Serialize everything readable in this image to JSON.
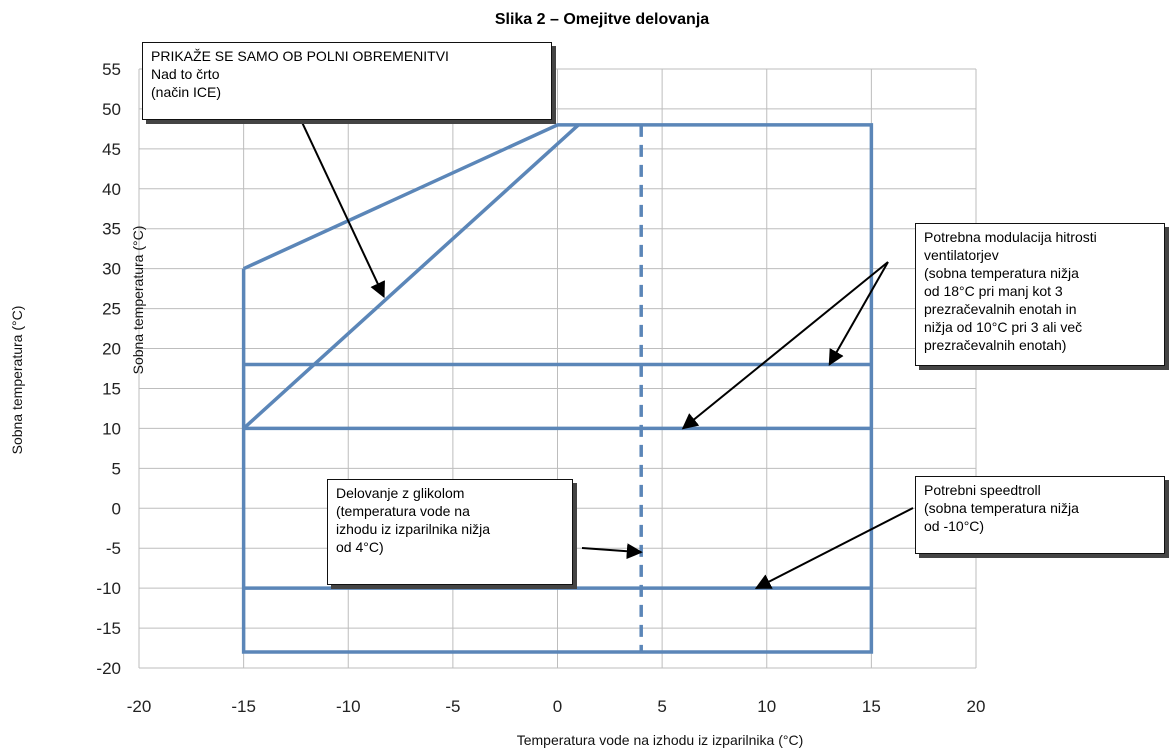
{
  "chart_data": {
    "type": "line",
    "title": "Slika 2 – Omejitve delovanja",
    "xlabel": "Temperatura vode na izhodu iz izparilnika (°C)",
    "ylabel": "Sobna temperatura (°C)",
    "ylabel_inner": "Sobna temperatura (°C)",
    "xlim": [
      -20,
      20
    ],
    "ylim": [
      -20,
      55
    ],
    "x_ticks": [
      "-20",
      "-15",
      "-10",
      "-5",
      "0",
      "5",
      "10",
      "15",
      "20"
    ],
    "y_ticks": [
      "55",
      "50",
      "45",
      "40",
      "35",
      "30",
      "25",
      "20",
      "15",
      "10",
      "5",
      "0",
      "-5",
      "-10",
      "-15",
      "-20"
    ],
    "grid": true,
    "series": [
      {
        "x": [
          -15,
          0,
          15,
          15,
          -15,
          -15
        ],
        "y": [
          30,
          48,
          48,
          -18,
          -18,
          30
        ]
      },
      {
        "x": [
          -15,
          1
        ],
        "y": [
          10,
          48
        ]
      },
      {
        "x": [
          -15,
          15
        ],
        "y": [
          18,
          18
        ]
      },
      {
        "x": [
          -15,
          15
        ],
        "y": [
          10,
          10
        ]
      },
      {
        "x": [
          -15,
          15
        ],
        "y": [
          -10,
          -10
        ]
      },
      {
        "x": [
          4,
          4
        ],
        "y": [
          48,
          -18
        ],
        "style": "dashed"
      }
    ],
    "line_color": "#5b86b8",
    "annotations": [
      {
        "id": "ice",
        "lines": [
          "PRIKAŽE SE SAMO OB POLNI OBREMENITVI",
          "Nad to črto",
          "(način ICE)"
        ],
        "arrow_targets": [
          {
            "x": -8.3,
            "y": 26.5
          }
        ]
      },
      {
        "id": "fan",
        "lines": [
          "Potrebna modulacija hitrosti",
          "ventilatorjev",
          "(sobna temperatura nižja",
          "od 18°C pri manj kot 3",
          "prezračevalnih enotah in",
          "nižja od 10°C pri 3 ali več",
          "prezračevalnih enotah)"
        ],
        "arrow_targets": [
          {
            "x": 13,
            "y": 18
          },
          {
            "x": 6,
            "y": 10
          }
        ]
      },
      {
        "id": "glycol",
        "lines": [
          "Delovanje z glikolom",
          "(temperatura vode na",
          "izhodu iz izparilnika nižja",
          "od 4°C)"
        ],
        "arrow_targets": [
          {
            "x": 4,
            "y": -5.5
          }
        ]
      },
      {
        "id": "speedtroll",
        "lines": [
          "Potrebni speedtroll",
          "(sobna temperatura nižja",
          "od -10°C)"
        ],
        "arrow_targets": [
          {
            "x": 9.5,
            "y": -10
          }
        ]
      }
    ]
  }
}
